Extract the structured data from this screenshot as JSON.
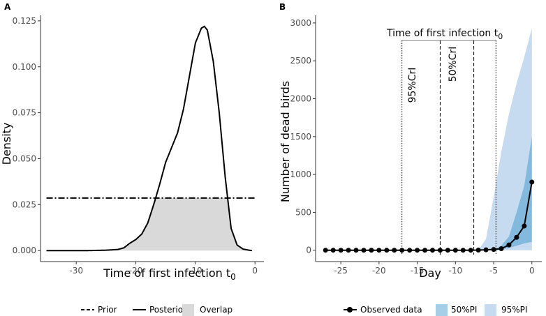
{
  "chart_data": [
    {
      "panel": "A",
      "type": "line",
      "xlabel": "Time of first infection t",
      "xlabel_subscript": "0",
      "ylabel": "Density",
      "xlim": [
        -36,
        1.5
      ],
      "ylim": [
        -0.006,
        0.128
      ],
      "xticks": [
        -30,
        -20,
        -10,
        0
      ],
      "xtick_labels": [
        "-30",
        "-20",
        "-10",
        "0"
      ],
      "yticks": [
        0.0,
        0.025,
        0.05,
        0.075,
        0.1,
        0.125
      ],
      "ytick_labels": [
        "0.000",
        "0.025",
        "0.050",
        "0.075",
        "0.100",
        "0.125"
      ],
      "grid": false,
      "prior": {
        "name": "Prior",
        "x_range": [
          -35,
          0
        ],
        "density": 0.0286
      },
      "posterior": {
        "name": "Posterior",
        "x": [
          -35,
          -28,
          -25,
          -23,
          -22,
          -21,
          -20,
          -19,
          -18,
          -17,
          -16,
          -15,
          -14,
          -13,
          -12,
          -11,
          -10,
          -9,
          -8.5,
          -8,
          -7,
          -6,
          -5,
          -4,
          -3,
          -2,
          -1,
          -0.5
        ],
        "y": [
          0.0,
          0.0,
          0.0002,
          0.0006,
          0.0015,
          0.004,
          0.006,
          0.009,
          0.015,
          0.025,
          0.036,
          0.048,
          0.056,
          0.064,
          0.077,
          0.095,
          0.113,
          0.121,
          0.122,
          0.12,
          0.103,
          0.075,
          0.04,
          0.012,
          0.003,
          0.0008,
          0.0002,
          0.0
        ]
      },
      "overlap": {
        "name": "Overlap",
        "color": "#d9d9d9"
      },
      "legend": [
        "Prior",
        "Posterior",
        "Overlap"
      ],
      "legend_position": "bottom"
    },
    {
      "panel": "B",
      "type": "line",
      "xlabel": "Day",
      "ylabel": "Number of dead birds",
      "xlim": [
        -28.3,
        1.3
      ],
      "ylim": [
        -150,
        3100
      ],
      "xticks": [
        -25,
        -20,
        -15,
        -10,
        -5,
        0
      ],
      "xtick_labels": [
        "-25",
        "-20",
        "-15",
        "-10",
        "-5",
        "0"
      ],
      "yticks": [
        0,
        500,
        1000,
        1500,
        2000,
        2500,
        3000
      ],
      "ytick_labels": [
        "0",
        "500",
        "1000",
        "1500",
        "2000",
        "2500",
        "3000"
      ],
      "grid": false,
      "observed": {
        "name": "Observed data",
        "x": [
          -27,
          -26,
          -25,
          -24,
          -23,
          -22,
          -21,
          -20,
          -19,
          -18,
          -17,
          -16,
          -15,
          -14,
          -13,
          -12,
          -11,
          -10,
          -9,
          -8,
          -7,
          -6,
          -5,
          -4,
          -3,
          -2,
          -1,
          0
        ],
        "y": [
          0,
          0,
          0,
          0,
          0,
          0,
          0,
          0,
          0,
          0,
          0,
          0,
          0,
          0,
          0,
          0,
          0,
          0,
          0,
          0,
          2,
          5,
          10,
          20,
          70,
          170,
          320,
          900
        ]
      },
      "pi95": {
        "name": "95%PI",
        "color": "#c6dbef",
        "x": [
          -7,
          -6,
          -5,
          -4,
          -3,
          -2,
          -1,
          0
        ],
        "lower": [
          0,
          0,
          0,
          0,
          0,
          0,
          0,
          0
        ],
        "upper": [
          0,
          150,
          700,
          1300,
          1800,
          2200,
          2550,
          2930
        ]
      },
      "pi50": {
        "name": "50%PI",
        "color": "#6baed6",
        "x": [
          -5,
          -4,
          -3,
          -2,
          -1,
          0
        ],
        "lower": [
          0,
          10,
          30,
          60,
          90,
          110
        ],
        "upper": [
          5,
          60,
          180,
          500,
          850,
          1500
        ]
      },
      "annotation": {
        "title": "Time of first infection t",
        "title_subscript": "0",
        "crl95": {
          "label": "95%CrI",
          "range": [
            -17.0,
            -4.7
          ]
        },
        "crl50": {
          "label": "50%CrI",
          "range": [
            -12.0,
            -7.6
          ]
        }
      },
      "legend": [
        "Observed data",
        "50%PI",
        "95%PI"
      ],
      "legend_position": "bottom"
    }
  ],
  "panel_labels": [
    "A",
    "B"
  ]
}
